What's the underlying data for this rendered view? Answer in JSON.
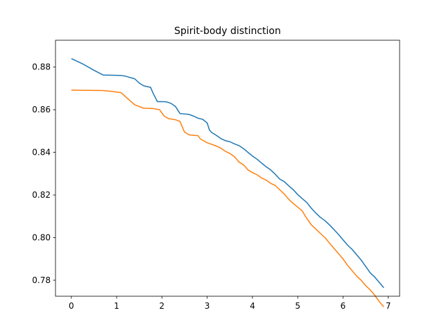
{
  "chart_data": {
    "type": "line",
    "title": "Spirit-body distinction",
    "xlabel": "",
    "ylabel": "",
    "xlim": [
      -0.35,
      7.25
    ],
    "ylim": [
      0.7725,
      0.8926
    ],
    "xticks": [
      0,
      1,
      2,
      3,
      4,
      5,
      6,
      7
    ],
    "yticks": [
      0.78,
      0.8,
      0.82,
      0.84,
      0.86,
      0.88
    ],
    "ytick_labels": [
      "0.78",
      "0.80",
      "0.82",
      "0.84",
      "0.86",
      "0.88"
    ],
    "grid": false,
    "legend": null,
    "series": [
      {
        "color": "#1f77b4",
        "points": [
          [
            0.0,
            0.884
          ],
          [
            0.25,
            0.8815
          ],
          [
            0.5,
            0.8785
          ],
          [
            0.7,
            0.8763
          ],
          [
            1.1,
            0.8761
          ],
          [
            1.2,
            0.8757
          ],
          [
            1.4,
            0.8745
          ],
          [
            1.5,
            0.8725
          ],
          [
            1.6,
            0.8712
          ],
          [
            1.75,
            0.8705
          ],
          [
            1.8,
            0.868
          ],
          [
            1.9,
            0.8638
          ],
          [
            2.0,
            0.8638
          ],
          [
            2.1,
            0.8637
          ],
          [
            2.2,
            0.863
          ],
          [
            2.3,
            0.8615
          ],
          [
            2.4,
            0.8582
          ],
          [
            2.6,
            0.8578
          ],
          [
            2.7,
            0.857
          ],
          [
            2.8,
            0.856
          ],
          [
            2.9,
            0.8555
          ],
          [
            3.0,
            0.8538
          ],
          [
            3.05,
            0.8505
          ],
          [
            3.1,
            0.8493
          ],
          [
            3.2,
            0.848
          ],
          [
            3.3,
            0.8465
          ],
          [
            3.4,
            0.8455
          ],
          [
            3.5,
            0.845
          ],
          [
            3.6,
            0.844
          ],
          [
            3.7,
            0.8432
          ],
          [
            3.8,
            0.8418
          ],
          [
            3.9,
            0.84
          ],
          [
            4.0,
            0.8383
          ],
          [
            4.1,
            0.8368
          ],
          [
            4.2,
            0.835
          ],
          [
            4.3,
            0.8333
          ],
          [
            4.4,
            0.8318
          ],
          [
            4.5,
            0.8298
          ],
          [
            4.6,
            0.8275
          ],
          [
            4.7,
            0.8263
          ],
          [
            4.8,
            0.8243
          ],
          [
            4.9,
            0.8225
          ],
          [
            5.0,
            0.8202
          ],
          [
            5.1,
            0.8183
          ],
          [
            5.2,
            0.8165
          ],
          [
            5.3,
            0.8138
          ],
          [
            5.4,
            0.8115
          ],
          [
            5.5,
            0.8095
          ],
          [
            5.6,
            0.808
          ],
          [
            5.7,
            0.806
          ],
          [
            5.8,
            0.8038
          ],
          [
            5.9,
            0.8015
          ],
          [
            6.0,
            0.799
          ],
          [
            6.1,
            0.7965
          ],
          [
            6.2,
            0.7945
          ],
          [
            6.3,
            0.792
          ],
          [
            6.4,
            0.7895
          ],
          [
            6.5,
            0.7865
          ],
          [
            6.6,
            0.7835
          ],
          [
            6.7,
            0.7815
          ],
          [
            6.8,
            0.779
          ],
          [
            6.9,
            0.7765
          ]
        ]
      },
      {
        "color": "#ff7f0e",
        "points": [
          [
            0.0,
            0.8692
          ],
          [
            0.3,
            0.8691
          ],
          [
            0.7,
            0.869
          ],
          [
            0.9,
            0.8686
          ],
          [
            1.1,
            0.868
          ],
          [
            1.2,
            0.866
          ],
          [
            1.4,
            0.8623
          ],
          [
            1.6,
            0.8607
          ],
          [
            1.8,
            0.8606
          ],
          [
            1.95,
            0.86
          ],
          [
            2.05,
            0.857
          ],
          [
            2.15,
            0.8558
          ],
          [
            2.3,
            0.8553
          ],
          [
            2.4,
            0.8545
          ],
          [
            2.5,
            0.8495
          ],
          [
            2.6,
            0.8482
          ],
          [
            2.8,
            0.8478
          ],
          [
            2.85,
            0.8463
          ],
          [
            3.0,
            0.8445
          ],
          [
            3.2,
            0.843
          ],
          [
            3.3,
            0.842
          ],
          [
            3.4,
            0.8405
          ],
          [
            3.5,
            0.8395
          ],
          [
            3.6,
            0.838
          ],
          [
            3.7,
            0.8355
          ],
          [
            3.8,
            0.8342
          ],
          [
            3.9,
            0.8318
          ],
          [
            4.0,
            0.8305
          ],
          [
            4.1,
            0.8295
          ],
          [
            4.2,
            0.828
          ],
          [
            4.3,
            0.827
          ],
          [
            4.4,
            0.8255
          ],
          [
            4.5,
            0.8245
          ],
          [
            4.6,
            0.8225
          ],
          [
            4.7,
            0.8205
          ],
          [
            4.8,
            0.818
          ],
          [
            4.9,
            0.816
          ],
          [
            5.0,
            0.8143
          ],
          [
            5.1,
            0.8125
          ],
          [
            5.2,
            0.809
          ],
          [
            5.3,
            0.806
          ],
          [
            5.4,
            0.804
          ],
          [
            5.5,
            0.802
          ],
          [
            5.6,
            0.8
          ],
          [
            5.7,
            0.7975
          ],
          [
            5.8,
            0.795
          ],
          [
            5.9,
            0.7925
          ],
          [
            6.0,
            0.79
          ],
          [
            6.1,
            0.787
          ],
          [
            6.2,
            0.7845
          ],
          [
            6.3,
            0.782
          ],
          [
            6.4,
            0.78
          ],
          [
            6.5,
            0.7775
          ],
          [
            6.6,
            0.7755
          ],
          [
            6.7,
            0.773
          ],
          [
            6.8,
            0.77
          ],
          [
            6.9,
            0.7675
          ]
        ]
      }
    ]
  }
}
